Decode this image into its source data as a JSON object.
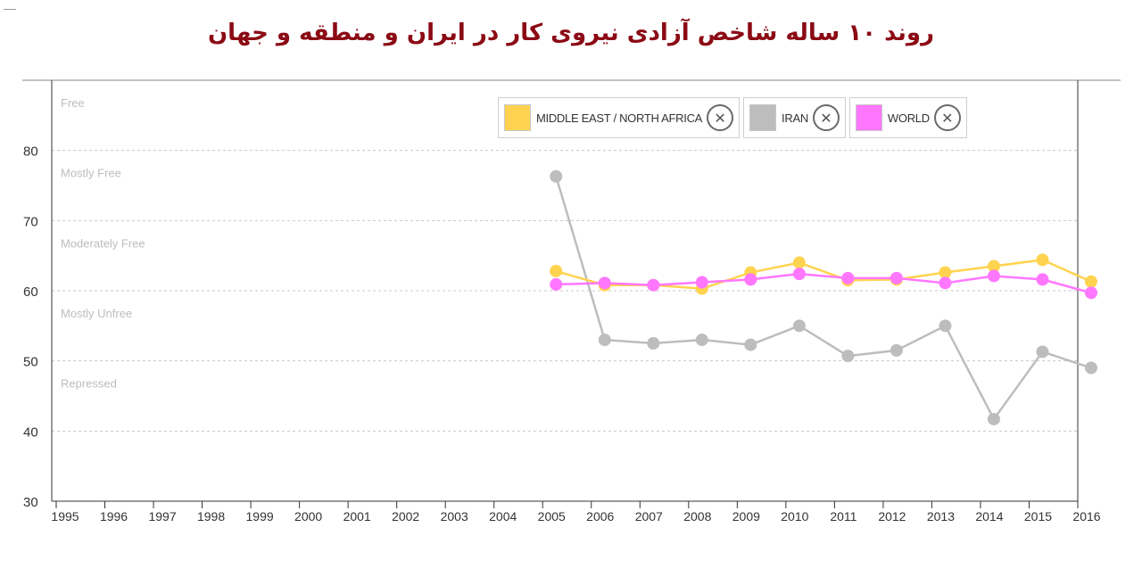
{
  "page": {
    "title": "روند ۱۰ ساله شاخص آزادی نیروی کار در ایران و منطقه و جهان"
  },
  "legend": {
    "items": [
      {
        "label": "MIDDLE EAST / NORTH AFRICA",
        "color": "#ffd34f",
        "remove_icon": "close-circle-icon",
        "remove_glyph": "✕"
      },
      {
        "label": "IRAN",
        "color": "#bdbdbd",
        "remove_icon": "close-circle-icon",
        "remove_glyph": "✕"
      },
      {
        "label": "WORLD",
        "color": "#ff77ff",
        "remove_icon": "close-circle-icon",
        "remove_glyph": "✕"
      }
    ]
  },
  "chart_data": {
    "type": "line",
    "x": [
      1995,
      1996,
      1997,
      1998,
      1999,
      2000,
      2001,
      2002,
      2003,
      2004,
      2005,
      2006,
      2007,
      2008,
      2009,
      2010,
      2011,
      2012,
      2013,
      2014,
      2015,
      2016
    ],
    "ylim": [
      30,
      90
    ],
    "yticks": [
      30,
      40,
      50,
      60,
      70,
      80
    ],
    "grid": true,
    "bands": [
      {
        "label": "Free",
        "y": 90
      },
      {
        "label": "Mostly Free",
        "y": 80
      },
      {
        "label": "Moderately Free",
        "y": 70
      },
      {
        "label": "Mostly Unfree",
        "y": 60
      },
      {
        "label": "Repressed",
        "y": 50
      }
    ],
    "series": [
      {
        "name": "IRAN",
        "color": "#bdbdbd",
        "x": [
          2005,
          2006,
          2007,
          2008,
          2009,
          2010,
          2011,
          2012,
          2013,
          2014,
          2015,
          2016
        ],
        "values": [
          76.3,
          53.0,
          52.5,
          53.0,
          52.3,
          55.0,
          50.7,
          51.5,
          55.0,
          41.7,
          51.3,
          49.0
        ]
      },
      {
        "name": "MIDDLE EAST / NORTH AFRICA",
        "color": "#ffd34f",
        "x": [
          2005,
          2006,
          2007,
          2008,
          2009,
          2010,
          2011,
          2012,
          2013,
          2014,
          2015,
          2016
        ],
        "values": [
          62.8,
          60.8,
          60.8,
          60.3,
          62.6,
          64.0,
          61.5,
          61.6,
          62.6,
          63.5,
          64.4,
          61.3
        ]
      },
      {
        "name": "WORLD",
        "color": "#ff77ff",
        "x": [
          2005,
          2006,
          2007,
          2008,
          2009,
          2010,
          2011,
          2012,
          2013,
          2014,
          2015,
          2016
        ],
        "values": [
          60.9,
          61.1,
          60.8,
          61.2,
          61.6,
          62.4,
          61.8,
          61.8,
          61.1,
          62.1,
          61.6,
          59.7
        ]
      }
    ]
  }
}
